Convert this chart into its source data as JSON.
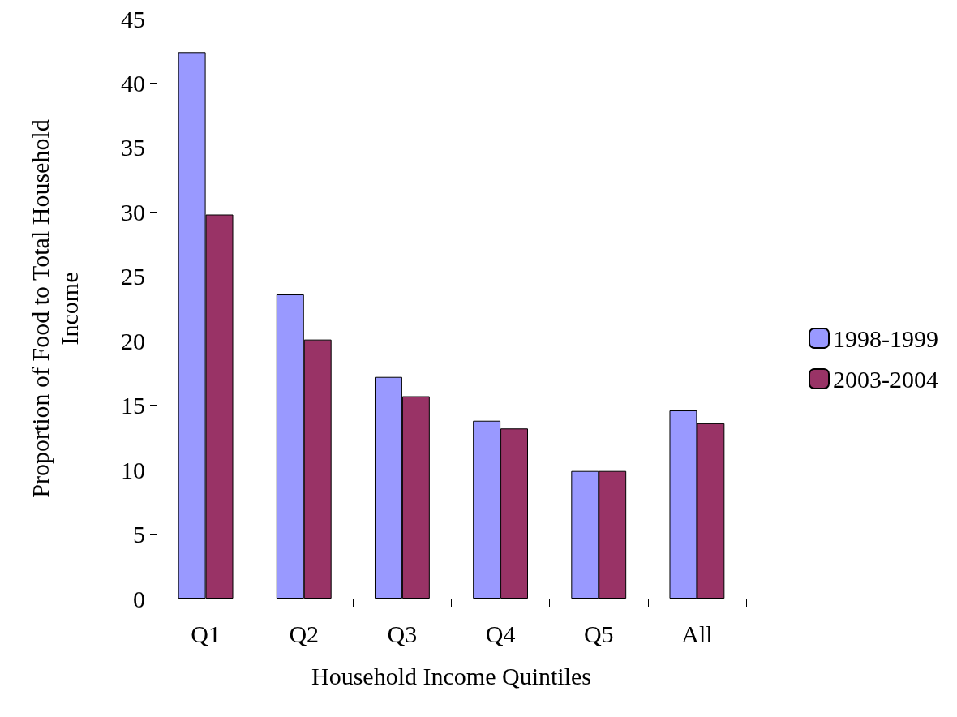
{
  "chart_data": {
    "type": "bar",
    "xlabel": "Household Income Quintiles",
    "ylabel": "Proportion of Food to Total Household\nIncome",
    "categories": [
      "Q1",
      "Q2",
      "Q3",
      "Q4",
      "Q5",
      "All"
    ],
    "series": [
      {
        "name": "1998-1999",
        "color": "#9999ff",
        "values": [
          42.4,
          23.6,
          17.2,
          13.8,
          9.9,
          14.6
        ]
      },
      {
        "name": "2003-2004",
        "color": "#993366",
        "values": [
          29.8,
          20.1,
          15.7,
          13.2,
          9.9,
          13.6
        ]
      }
    ],
    "ylim": [
      0,
      45
    ],
    "yticks": [
      0,
      5,
      10,
      15,
      20,
      25,
      30,
      35,
      40,
      45
    ],
    "grid": false,
    "legend": "right"
  }
}
